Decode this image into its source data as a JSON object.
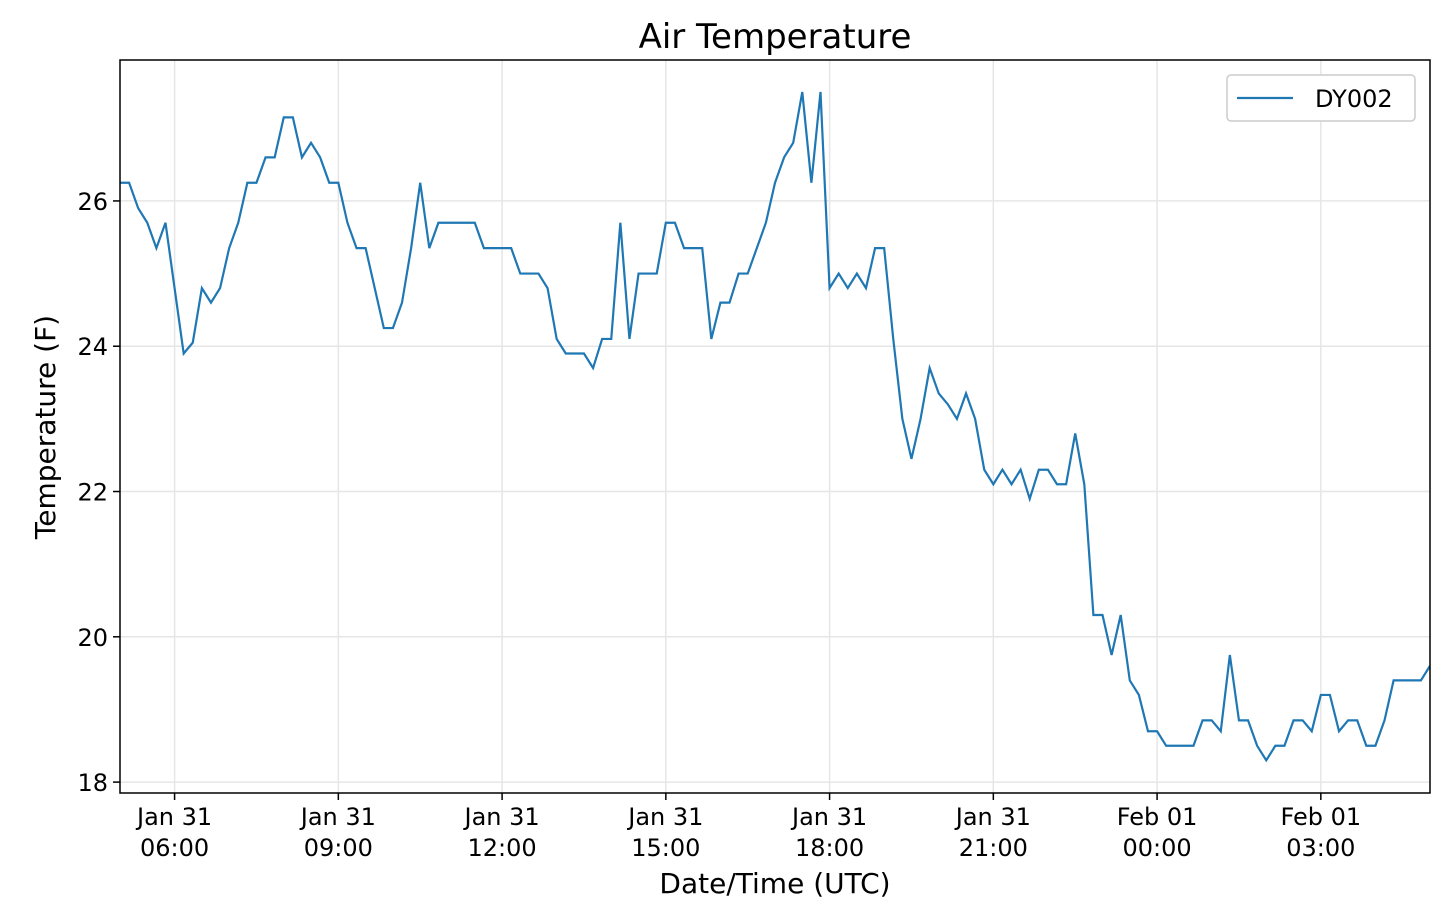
{
  "chart_data": {
    "type": "line",
    "title": "Air Temperature",
    "xlabel": "Date/Time (UTC)",
    "ylabel": "Temperature (F)",
    "x": [
      "Jan 31 05:00",
      "Jan 31 05:10",
      "Jan 31 05:20",
      "Jan 31 05:30",
      "Jan 31 05:40",
      "Jan 31 05:50",
      "Jan 31 06:00",
      "Jan 31 06:10",
      "Jan 31 06:20",
      "Jan 31 06:30",
      "Jan 31 06:40",
      "Jan 31 06:50",
      "Jan 31 07:00",
      "Jan 31 07:10",
      "Jan 31 07:20",
      "Jan 31 07:30",
      "Jan 31 07:40",
      "Jan 31 07:50",
      "Jan 31 08:00",
      "Jan 31 08:10",
      "Jan 31 08:20",
      "Jan 31 08:30",
      "Jan 31 08:40",
      "Jan 31 08:50",
      "Jan 31 09:00",
      "Jan 31 09:10",
      "Jan 31 09:20",
      "Jan 31 09:30",
      "Jan 31 09:40",
      "Jan 31 09:50",
      "Jan 31 10:00",
      "Jan 31 10:10",
      "Jan 31 10:20",
      "Jan 31 10:30",
      "Jan 31 10:40",
      "Jan 31 10:50",
      "Jan 31 11:00",
      "Jan 31 11:10",
      "Jan 31 11:20",
      "Jan 31 11:30",
      "Jan 31 11:40",
      "Jan 31 11:50",
      "Jan 31 12:00",
      "Jan 31 12:10",
      "Jan 31 12:20",
      "Jan 31 12:30",
      "Jan 31 12:40",
      "Jan 31 12:50",
      "Jan 31 13:00",
      "Jan 31 13:10",
      "Jan 31 13:20",
      "Jan 31 13:30",
      "Jan 31 13:40",
      "Jan 31 13:50",
      "Jan 31 14:00",
      "Jan 31 14:10",
      "Jan 31 14:20",
      "Jan 31 14:30",
      "Jan 31 14:40",
      "Jan 31 14:50",
      "Jan 31 15:00",
      "Jan 31 15:10",
      "Jan 31 15:20",
      "Jan 31 15:30",
      "Jan 31 15:40",
      "Jan 31 15:50",
      "Jan 31 16:00",
      "Jan 31 16:10",
      "Jan 31 16:20",
      "Jan 31 16:30",
      "Jan 31 16:40",
      "Jan 31 16:50",
      "Jan 31 17:00",
      "Jan 31 17:10",
      "Jan 31 17:20",
      "Jan 31 17:30",
      "Jan 31 17:40",
      "Jan 31 17:50",
      "Jan 31 18:00",
      "Jan 31 18:10",
      "Jan 31 18:20",
      "Jan 31 18:30",
      "Jan 31 18:40",
      "Jan 31 18:50",
      "Jan 31 19:00",
      "Jan 31 19:10",
      "Jan 31 19:20",
      "Jan 31 19:30",
      "Jan 31 19:40",
      "Jan 31 19:50",
      "Jan 31 20:00",
      "Jan 31 20:10",
      "Jan 31 20:20",
      "Jan 31 20:30",
      "Jan 31 20:40",
      "Jan 31 20:50",
      "Jan 31 21:00",
      "Jan 31 21:10",
      "Jan 31 21:20",
      "Jan 31 21:30",
      "Jan 31 21:40",
      "Jan 31 21:50",
      "Jan 31 22:00",
      "Jan 31 22:10",
      "Jan 31 22:20",
      "Jan 31 22:30",
      "Jan 31 22:40",
      "Jan 31 22:50",
      "Jan 31 23:00",
      "Jan 31 23:10",
      "Jan 31 23:20",
      "Jan 31 23:30",
      "Jan 31 23:40",
      "Jan 31 23:50",
      "Feb 01 00:00",
      "Feb 01 00:10",
      "Feb 01 00:20",
      "Feb 01 00:30",
      "Feb 01 00:40",
      "Feb 01 00:50",
      "Feb 01 01:00",
      "Feb 01 01:10",
      "Feb 01 01:20",
      "Feb 01 01:30",
      "Feb 01 01:40",
      "Feb 01 01:50",
      "Feb 01 02:00",
      "Feb 01 02:10",
      "Feb 01 02:20",
      "Feb 01 02:30",
      "Feb 01 02:40",
      "Feb 01 02:50",
      "Feb 01 03:00",
      "Feb 01 03:10",
      "Feb 01 03:20",
      "Feb 01 03:30",
      "Feb 01 03:40",
      "Feb 01 03:50",
      "Feb 01 04:00",
      "Feb 01 04:10",
      "Feb 01 04:20",
      "Feb 01 04:30",
      "Feb 01 04:40",
      "Feb 01 04:50",
      "Feb 01 05:00"
    ],
    "series": [
      {
        "name": "DY002",
        "color": "#1f77b4",
        "values": [
          26.25,
          26.25,
          25.9,
          25.7,
          25.35,
          25.7,
          24.8,
          23.9,
          24.05,
          24.8,
          24.6,
          24.8,
          25.35,
          25.7,
          26.25,
          26.25,
          26.6,
          26.6,
          27.15,
          27.15,
          26.6,
          26.8,
          26.6,
          26.25,
          26.25,
          25.7,
          25.35,
          25.35,
          24.8,
          24.25,
          24.25,
          24.6,
          25.35,
          26.25,
          25.35,
          25.7,
          25.7,
          25.7,
          25.7,
          25.7,
          25.35,
          25.35,
          25.35,
          25.35,
          25.0,
          25.0,
          25.0,
          24.8,
          24.1,
          23.9,
          23.9,
          23.9,
          23.7,
          24.1,
          24.1,
          25.7,
          24.1,
          25.0,
          25.0,
          25.0,
          25.7,
          25.7,
          25.35,
          25.35,
          25.35,
          24.1,
          24.6,
          24.6,
          25.0,
          25.0,
          25.35,
          25.7,
          26.25,
          26.6,
          26.8,
          27.5,
          26.25,
          27.5,
          24.8,
          25.0,
          24.8,
          25.0,
          24.8,
          25.35,
          25.35,
          24.1,
          23.0,
          22.45,
          23.0,
          23.7,
          23.35,
          23.2,
          23.0,
          23.35,
          23.0,
          22.3,
          22.1,
          22.3,
          22.1,
          22.3,
          21.9,
          22.3,
          22.3,
          22.1,
          22.1,
          22.8,
          22.1,
          20.3,
          20.3,
          19.75,
          20.3,
          19.4,
          19.2,
          18.7,
          18.7,
          18.5,
          18.5,
          18.5,
          18.5,
          18.85,
          18.85,
          18.7,
          19.75,
          18.85,
          18.85,
          18.5,
          18.3,
          18.5,
          18.5,
          18.85,
          18.85,
          18.7,
          19.2,
          19.2,
          18.7,
          18.85,
          18.85,
          18.5,
          18.5,
          18.85,
          19.4,
          19.4,
          19.4,
          19.4,
          19.6
        ]
      }
    ],
    "xlim": [
      "Jan 31 05:00",
      "Feb 01 05:00"
    ],
    "xticks": [
      "Jan 31 06:00",
      "Jan 31 09:00",
      "Jan 31 12:00",
      "Jan 31 15:00",
      "Jan 31 18:00",
      "Jan 31 21:00",
      "Feb 01 00:00",
      "Feb 01 03:00"
    ],
    "ylim": [
      17.85,
      27.94
    ],
    "yticks": [
      18,
      20,
      22,
      24,
      26
    ],
    "grid": true,
    "legend": "upper right"
  }
}
